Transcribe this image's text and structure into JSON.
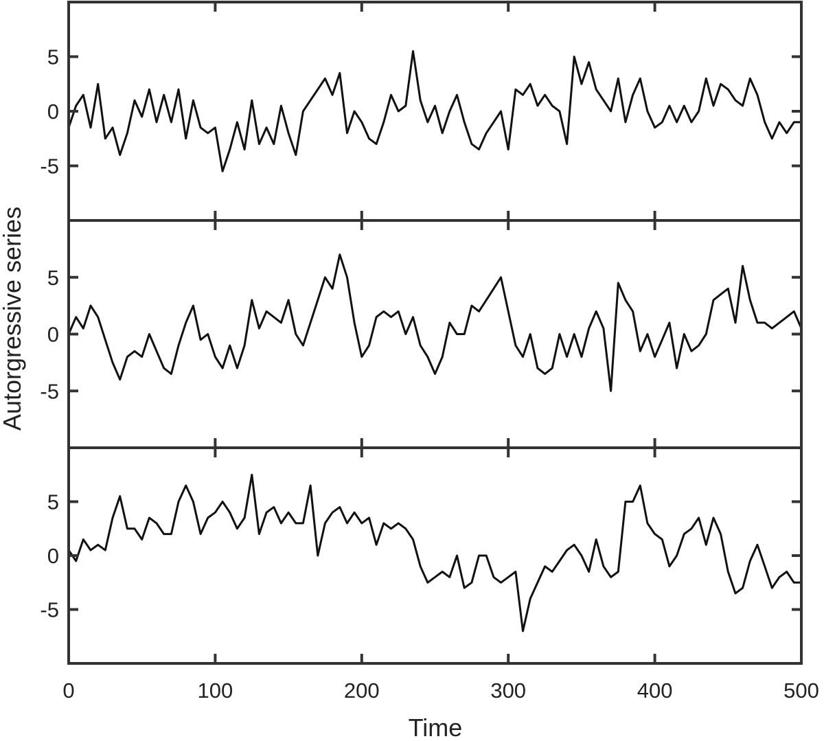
{
  "chart_data": {
    "type": "line",
    "layout": "stacked-panels",
    "xlabel": "Time",
    "ylabel": "Autorgressive  series",
    "xlim": [
      0,
      500
    ],
    "xticks": [
      0,
      100,
      200,
      300,
      400,
      500
    ],
    "grid": false,
    "legend": "none",
    "line_color": "#111111",
    "frame_color": "#333333",
    "panels": [
      {
        "ylim": [
          -10,
          10
        ],
        "yticks": [
          -5,
          0,
          5
        ],
        "series": [
          {
            "x": [
              0,
              5,
              10,
              15,
              20,
              25,
              30,
              35,
              40,
              45,
              50,
              55,
              60,
              65,
              70,
              75,
              80,
              85,
              90,
              95,
              100,
              105,
              110,
              115,
              120,
              125,
              130,
              135,
              140,
              145,
              150,
              155,
              160,
              165,
              170,
              175,
              180,
              185,
              190,
              195,
              200,
              205,
              210,
              215,
              220,
              225,
              230,
              235,
              240,
              245,
              250,
              255,
              260,
              265,
              270,
              275,
              280,
              285,
              290,
              295,
              300,
              305,
              310,
              315,
              320,
              325,
              330,
              335,
              340,
              345,
              350,
              355,
              360,
              365,
              370,
              375,
              380,
              385,
              390,
              395,
              400,
              405,
              410,
              415,
              420,
              425,
              430,
              435,
              440,
              445,
              450,
              455,
              460,
              465,
              470,
              475,
              480,
              485,
              490,
              495,
              500
            ],
            "y": [
              -1.5,
              0.5,
              1.5,
              -1.5,
              2.5,
              -2.5,
              -1.5,
              -4,
              -2,
              1,
              -0.5,
              2,
              -1,
              1.5,
              -1,
              2,
              -2.5,
              1,
              -1.5,
              -2,
              -1.5,
              -5.5,
              -3.5,
              -1,
              -3.5,
              1,
              -3,
              -1.5,
              -3,
              0.5,
              -2,
              -4,
              0,
              1,
              2,
              3,
              1.5,
              3.5,
              -2,
              0,
              -1,
              -2.5,
              -3,
              -1,
              1.5,
              0,
              0.5,
              5.5,
              1,
              -1,
              0.5,
              -2,
              0,
              1.5,
              -1,
              -3,
              -3.5,
              -2,
              -1,
              0,
              -3.5,
              2,
              1.5,
              2.5,
              0.5,
              1.5,
              0.5,
              0,
              -3,
              5,
              2.5,
              4.5,
              2,
              1,
              0,
              3,
              -1,
              1.5,
              3,
              0,
              -1.5,
              -1,
              0.5,
              -1,
              0.5,
              -1,
              0,
              3,
              0.5,
              2.5,
              2,
              1,
              0.5,
              3,
              1.5,
              -1,
              -2.5,
              -1,
              -2,
              -1,
              -1
            ]
          }
        ]
      },
      {
        "ylim": [
          -10,
          10
        ],
        "yticks": [
          -5,
          0,
          5
        ],
        "series": [
          {
            "x": [
              0,
              5,
              10,
              15,
              20,
              25,
              30,
              35,
              40,
              45,
              50,
              55,
              60,
              65,
              70,
              75,
              80,
              85,
              90,
              95,
              100,
              105,
              110,
              115,
              120,
              125,
              130,
              135,
              140,
              145,
              150,
              155,
              160,
              165,
              170,
              175,
              180,
              185,
              190,
              195,
              200,
              205,
              210,
              215,
              220,
              225,
              230,
              235,
              240,
              245,
              250,
              255,
              260,
              265,
              270,
              275,
              280,
              285,
              290,
              295,
              300,
              305,
              310,
              315,
              320,
              325,
              330,
              335,
              340,
              345,
              350,
              355,
              360,
              365,
              370,
              375,
              380,
              385,
              390,
              395,
              400,
              405,
              410,
              415,
              420,
              425,
              430,
              435,
              440,
              445,
              450,
              455,
              460,
              465,
              470,
              475,
              480,
              485,
              490,
              495,
              500
            ],
            "y": [
              0,
              1.5,
              0.5,
              2.5,
              1.5,
              -0.5,
              -2.5,
              -4,
              -2,
              -1.5,
              -2,
              0,
              -1.5,
              -3,
              -3.5,
              -1,
              1,
              2.5,
              -0.5,
              0,
              -2,
              -3,
              -1,
              -3,
              -1,
              3,
              0.5,
              2,
              1.5,
              1,
              3,
              0,
              -1,
              1,
              3,
              5,
              4,
              7,
              5,
              1,
              -2,
              -1,
              1.5,
              2,
              1.5,
              2,
              0,
              1.5,
              -1,
              -2,
              -3.5,
              -2,
              1,
              0,
              0,
              2.5,
              2,
              3,
              4,
              5,
              2,
              -1,
              -2,
              0,
              -3,
              -3.5,
              -3,
              0,
              -2,
              0,
              -2,
              0.5,
              2,
              0.5,
              -5,
              4.5,
              3,
              2,
              -1.5,
              0,
              -2,
              -0.5,
              1,
              -3,
              0,
              -1.5,
              -1,
              0,
              3,
              3.5,
              4,
              1,
              6,
              3,
              1,
              1,
              0.5,
              1,
              1.5,
              2,
              0.5
            ]
          }
        ]
      },
      {
        "ylim": [
          -10,
          10
        ],
        "yticks": [
          -5,
          0,
          5
        ],
        "series": [
          {
            "x": [
              0,
              5,
              10,
              15,
              20,
              25,
              30,
              35,
              40,
              45,
              50,
              55,
              60,
              65,
              70,
              75,
              80,
              85,
              90,
              95,
              100,
              105,
              110,
              115,
              120,
              125,
              130,
              135,
              140,
              145,
              150,
              155,
              160,
              165,
              170,
              175,
              180,
              185,
              190,
              195,
              200,
              205,
              210,
              215,
              220,
              225,
              230,
              235,
              240,
              245,
              250,
              255,
              260,
              265,
              270,
              275,
              280,
              285,
              290,
              295,
              300,
              305,
              310,
              315,
              320,
              325,
              330,
              335,
              340,
              345,
              350,
              355,
              360,
              365,
              370,
              375,
              380,
              385,
              390,
              395,
              400,
              405,
              410,
              415,
              420,
              425,
              430,
              435,
              440,
              445,
              450,
              455,
              460,
              465,
              470,
              475,
              480,
              485,
              490,
              495,
              500
            ],
            "y": [
              0.5,
              -0.5,
              1.5,
              0.5,
              1,
              0.5,
              3.5,
              5.5,
              2.5,
              2.5,
              1.5,
              3.5,
              3,
              2,
              2,
              5,
              6.5,
              5,
              2,
              3.5,
              4,
              5,
              4,
              2.5,
              3.5,
              7.5,
              2,
              4,
              4.5,
              3,
              4,
              3,
              3,
              6.5,
              0,
              3,
              4,
              4.5,
              3,
              4,
              3,
              3.5,
              1,
              3,
              2.5,
              3,
              2.5,
              1.5,
              -1,
              -2.5,
              -2,
              -1.5,
              -2,
              0,
              -3,
              -2.5,
              0,
              0,
              -2,
              -2.5,
              -2,
              -1.5,
              -7,
              -4,
              -2.5,
              -1,
              -1.5,
              -0.5,
              0.5,
              1,
              0,
              -1.5,
              1.5,
              -1,
              -2,
              -1.5,
              5,
              5,
              6.5,
              3,
              2,
              1.5,
              -1,
              0,
              2,
              2.5,
              3.5,
              1,
              3.5,
              2,
              -1.5,
              -3.5,
              -3,
              -0.5,
              1,
              -1,
              -3,
              -2,
              -1.5,
              -2.5,
              -2.5
            ]
          }
        ]
      }
    ]
  }
}
